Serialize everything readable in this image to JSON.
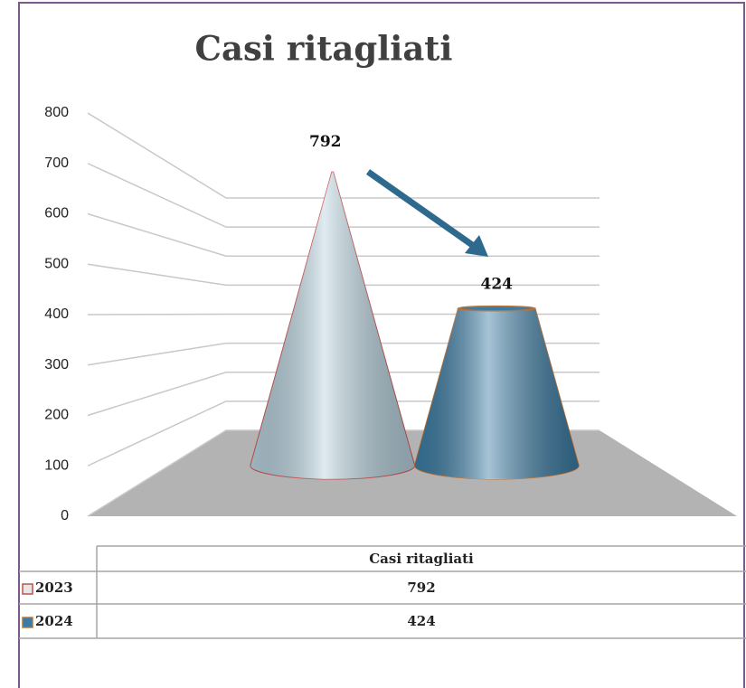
{
  "chart_data": {
    "type": "cone",
    "title": "Casi ritagliati",
    "categories": [
      "Casi ritagliati"
    ],
    "series": [
      {
        "name": "2023",
        "color": "#b9d3e0",
        "values": [
          792
        ]
      },
      {
        "name": "2024",
        "color": "#3a7ca5",
        "values": [
          424
        ]
      }
    ],
    "ylim": [
      0,
      800
    ],
    "yticks": [
      0,
      100,
      200,
      300,
      400,
      500,
      600,
      700,
      800
    ],
    "grid": true
  }
}
